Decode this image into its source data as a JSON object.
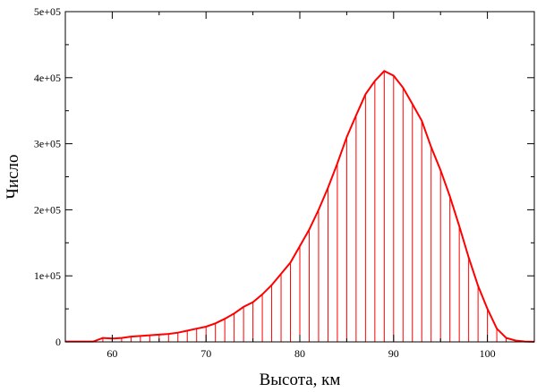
{
  "chart_data": {
    "type": "bar",
    "title": "",
    "xlabel": "Высота, км",
    "ylabel": "Число",
    "xlim": [
      55,
      105
    ],
    "ylim": [
      0,
      500000
    ],
    "grid": false,
    "x_ticks": [
      60,
      70,
      80,
      90,
      100
    ],
    "x_tick_labels": [
      "60",
      "70",
      "80",
      "90",
      "100"
    ],
    "y_ticks": [
      0,
      100000,
      200000,
      300000,
      400000,
      500000
    ],
    "y_tick_labels": [
      "0",
      "1e+05",
      "2e+05",
      "3e+05",
      "4e+05",
      "5e+05"
    ],
    "colors": {
      "series": "#ff0000",
      "axis": "#000000"
    },
    "series": [
      {
        "x": [
          55,
          56,
          57,
          58,
          59,
          60,
          61,
          62,
          63,
          64,
          65,
          66,
          67,
          68,
          69,
          70,
          71,
          72,
          73,
          74,
          75,
          76,
          77,
          78,
          79,
          80,
          81,
          82,
          83,
          84,
          85,
          86,
          87,
          88,
          89,
          90,
          91,
          92,
          93,
          94,
          95,
          96,
          97,
          98,
          99,
          100,
          101,
          102,
          103,
          104,
          105
        ],
        "values": [
          500,
          500,
          500,
          600,
          6000,
          5000,
          6000,
          8000,
          9000,
          10000,
          11000,
          12000,
          14000,
          17000,
          20000,
          23000,
          28000,
          35000,
          43000,
          53000,
          60000,
          72000,
          86000,
          103000,
          120000,
          145000,
          170000,
          200000,
          233000,
          270000,
          310000,
          343000,
          375000,
          395000,
          410000,
          403000,
          385000,
          360000,
          335000,
          295000,
          260000,
          220000,
          175000,
          128000,
          85000,
          50000,
          20000,
          6000,
          2000,
          500,
          200
        ]
      }
    ]
  }
}
